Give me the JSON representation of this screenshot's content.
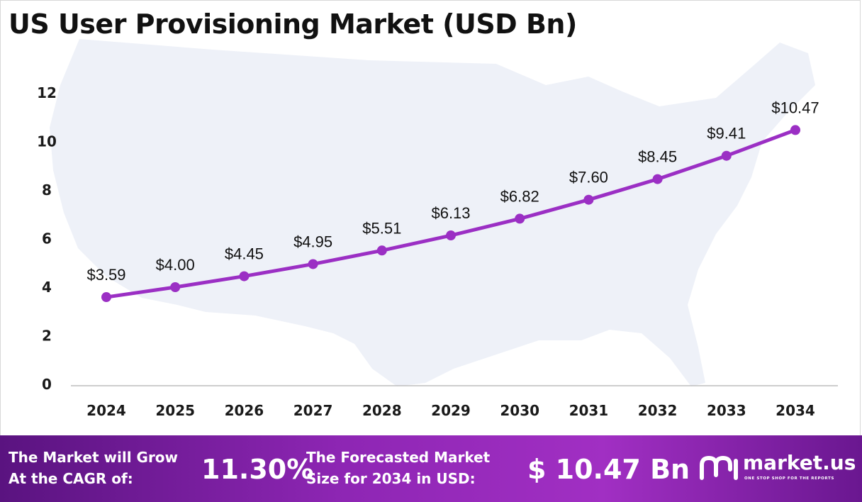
{
  "title": "US User Provisioning Market (USD Bn)",
  "colors": {
    "line": "#9b2fc4",
    "marker": "#9b2fc4",
    "axis": "#bdbdbd",
    "map": "#eef1f8",
    "footer_bg": "#8e26b4"
  },
  "chart_data": {
    "type": "line",
    "title": "US User Provisioning Market (USD Bn)",
    "categories": [
      "2024",
      "2025",
      "2026",
      "2027",
      "2028",
      "2029",
      "2030",
      "2031",
      "2032",
      "2033",
      "2034"
    ],
    "values": [
      3.59,
      4.0,
      4.45,
      4.95,
      5.51,
      6.13,
      6.82,
      7.6,
      8.45,
      9.41,
      10.47
    ],
    "data_labels": [
      "$3.59",
      "$4.00",
      "$4.45",
      "$4.95",
      "$5.51",
      "$6.13",
      "$6.82",
      "$7.60",
      "$8.45",
      "$9.41",
      "$10.47"
    ],
    "yticks": [
      "0",
      "2",
      "4",
      "6",
      "8",
      "10",
      "12"
    ],
    "ylim": [
      0,
      12
    ],
    "xlabel": "",
    "ylabel": "",
    "grid": false,
    "legend": "none"
  },
  "footer": {
    "cagr_line1": "The Market will Grow",
    "cagr_line2": "At the CAGR of:",
    "cagr_value": "11.30%",
    "forecast_line1": "The Forecasted Market",
    "forecast_line2": "Size for 2034 in USD:",
    "forecast_value": "$ 10.47 Bn",
    "logo_icon": "market-us-logo-icon",
    "logo_text": "market.us",
    "logo_tagline": "ONE STOP SHOP FOR THE REPORTS"
  }
}
